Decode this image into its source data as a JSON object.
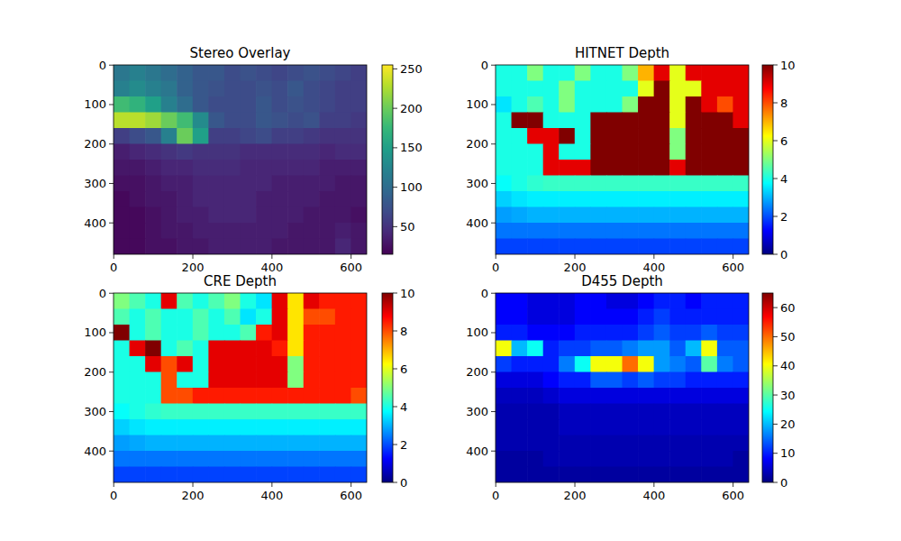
{
  "chart_data": [
    {
      "type": "heatmap",
      "title": "Stereo Overlay",
      "color": "viridis",
      "xlim": [
        -0.5,
        639.5
      ],
      "ylim": [
        479.5,
        -0.5
      ],
      "xticks": [
        0,
        200,
        400,
        600
      ],
      "yticks": [
        0,
        100,
        200,
        300,
        400
      ],
      "cells": [
        [
          110,
          120,
          110,
          100,
          90,
          80,
          80,
          70,
          75,
          70,
          65,
          70,
          75,
          70,
          65,
          60
        ],
        [
          120,
          130,
          120,
          110,
          90,
          80,
          75,
          70,
          70,
          75,
          70,
          80,
          70,
          65,
          60,
          60
        ],
        [
          180,
          170,
          150,
          120,
          100,
          80,
          70,
          70,
          70,
          80,
          70,
          75,
          70,
          65,
          60,
          60
        ],
        [
          230,
          230,
          220,
          200,
          180,
          130,
          80,
          70,
          70,
          80,
          75,
          70,
          75,
          60,
          60,
          55
        ],
        [
          60,
          70,
          80,
          120,
          200,
          150,
          60,
          60,
          65,
          70,
          60,
          60,
          55,
          50,
          50,
          50
        ],
        [
          35,
          40,
          45,
          50,
          55,
          50,
          50,
          50,
          45,
          45,
          45,
          45,
          45,
          40,
          45,
          45
        ],
        [
          30,
          30,
          35,
          40,
          40,
          45,
          45,
          45,
          40,
          40,
          40,
          40,
          40,
          35,
          35,
          35
        ],
        [
          25,
          25,
          30,
          35,
          35,
          40,
          40,
          40,
          40,
          40,
          35,
          35,
          35,
          35,
          30,
          30
        ],
        [
          20,
          25,
          30,
          30,
          35,
          40,
          40,
          40,
          40,
          35,
          35,
          35,
          35,
          30,
          30,
          30
        ],
        [
          20,
          20,
          25,
          30,
          35,
          35,
          40,
          40,
          40,
          35,
          35,
          35,
          30,
          30,
          30,
          25
        ],
        [
          20,
          20,
          25,
          30,
          30,
          35,
          35,
          35,
          35,
          35,
          35,
          30,
          30,
          30,
          35,
          30
        ],
        [
          20,
          20,
          25,
          25,
          30,
          30,
          35,
          35,
          35,
          35,
          30,
          30,
          30,
          30,
          40,
          30
        ]
      ],
      "colorbar": {
        "range": [
          15,
          255
        ],
        "ticks": [
          50,
          100,
          150,
          200,
          250
        ]
      }
    },
    {
      "type": "heatmap",
      "title": "HITNET Depth",
      "color": "jet",
      "xlim": [
        -0.5,
        639.5
      ],
      "ylim": [
        479.5,
        -0.5
      ],
      "xticks": [
        0,
        200,
        400,
        600
      ],
      "yticks": [
        0,
        100,
        200,
        300,
        400
      ],
      "cells": [
        [
          4,
          4,
          5,
          4,
          4,
          5,
          4,
          4,
          5,
          7,
          9,
          6,
          9,
          9,
          9,
          9
        ],
        [
          4,
          4,
          4,
          4,
          5,
          4,
          4,
          4,
          4,
          6,
          10,
          6,
          6,
          9,
          9,
          9
        ],
        [
          3.5,
          4,
          4.5,
          4,
          5,
          4,
          4,
          4,
          5,
          10,
          10,
          6,
          10,
          9,
          8,
          9
        ],
        [
          4,
          10,
          10,
          4,
          4,
          4,
          10,
          10,
          10,
          10,
          10,
          6,
          10,
          10,
          10,
          9
        ],
        [
          4,
          4,
          9,
          9,
          10,
          4,
          10,
          10,
          10,
          10,
          10,
          5,
          10,
          10,
          10,
          10
        ],
        [
          4,
          4,
          4,
          9,
          4,
          4,
          10,
          10,
          10,
          10,
          10,
          5,
          10,
          10,
          10,
          10
        ],
        [
          4,
          4,
          4,
          9,
          9,
          9,
          10,
          10,
          10,
          10,
          10,
          9,
          10,
          10,
          10,
          10
        ],
        [
          3.8,
          4,
          4.2,
          4.3,
          4.3,
          4.3,
          4.3,
          4.3,
          4.3,
          4.3,
          4.3,
          4.3,
          4.3,
          4.3,
          4.3,
          4.3
        ],
        [
          3.3,
          3.5,
          3.6,
          3.6,
          3.6,
          3.6,
          3.6,
          3.6,
          3.6,
          3.6,
          3.6,
          3.6,
          3.6,
          3.6,
          3.6,
          3.6
        ],
        [
          2.8,
          2.9,
          3,
          3,
          3,
          3,
          3,
          3,
          3,
          3,
          3,
          3,
          3,
          3,
          3,
          3
        ],
        [
          2.4,
          2.4,
          2.4,
          2.4,
          2.4,
          2.4,
          2.4,
          2.4,
          2.4,
          2.4,
          2.4,
          2.4,
          2.4,
          2.4,
          2.4,
          2.4
        ],
        [
          1.9,
          1.9,
          1.9,
          1.9,
          1.9,
          1.9,
          1.9,
          1.9,
          1.9,
          1.9,
          1.9,
          1.9,
          1.9,
          1.9,
          1.9,
          1.9
        ]
      ],
      "colorbar": {
        "range": [
          0,
          10
        ],
        "ticks": [
          0,
          2,
          4,
          6,
          8,
          10
        ]
      }
    },
    {
      "type": "heatmap",
      "title": "CRE Depth",
      "color": "jet",
      "xlim": [
        -0.5,
        639.5
      ],
      "ylim": [
        479.5,
        -0.5
      ],
      "xticks": [
        0,
        200,
        400,
        600
      ],
      "yticks": [
        0,
        100,
        200,
        300,
        400
      ],
      "cells": [
        [
          5,
          4.5,
          4,
          9,
          4.5,
          4,
          4.5,
          5,
          4,
          3.5,
          9,
          6.5,
          9,
          8.5,
          8.5,
          8.5
        ],
        [
          4.5,
          4,
          4.5,
          4,
          4,
          4.5,
          4,
          4.5,
          3.5,
          4,
          9,
          6.5,
          8,
          8,
          8.5,
          8.5
        ],
        [
          10,
          4,
          4.5,
          4,
          4,
          4.5,
          4,
          4,
          4.5,
          8.5,
          9,
          6.5,
          8.5,
          8.5,
          8.5,
          8.5
        ],
        [
          4,
          9,
          10,
          4,
          4.5,
          4,
          9,
          9,
          9,
          9,
          8.5,
          6.5,
          8.5,
          8.5,
          8.5,
          8.5
        ],
        [
          4,
          4,
          9,
          8,
          9,
          4,
          9,
          9,
          9,
          9,
          9,
          5,
          8.5,
          8.5,
          8.5,
          8.5
        ],
        [
          4,
          4,
          4,
          8,
          4,
          4,
          9,
          9,
          9,
          9,
          9,
          5,
          8.5,
          8.5,
          8.5,
          8.5
        ],
        [
          4,
          4,
          4,
          8,
          8,
          8.5,
          8.5,
          8.5,
          8.5,
          8.5,
          8.5,
          8.5,
          8.5,
          8.5,
          8.5,
          8
        ],
        [
          3.8,
          4,
          4.2,
          4.3,
          4.3,
          4.3,
          4.3,
          4.3,
          4.3,
          4.3,
          4.3,
          4.3,
          4.3,
          4.3,
          4.3,
          4.3
        ],
        [
          3.3,
          3.5,
          3.6,
          3.6,
          3.6,
          3.6,
          3.6,
          3.6,
          3.6,
          3.6,
          3.6,
          3.6,
          3.6,
          3.6,
          3.6,
          3.6
        ],
        [
          2.8,
          2.9,
          3,
          3,
          3,
          3,
          3,
          3,
          3,
          3,
          3,
          3,
          3,
          3,
          3,
          3
        ],
        [
          2.4,
          2.4,
          2.4,
          2.4,
          2.4,
          2.4,
          2.4,
          2.4,
          2.4,
          2.4,
          2.4,
          2.4,
          2.4,
          2.4,
          2.4,
          2.4
        ],
        [
          1.9,
          1.9,
          1.9,
          1.9,
          1.9,
          1.9,
          1.9,
          1.9,
          1.9,
          1.9,
          1.9,
          1.9,
          1.9,
          1.9,
          1.9,
          1.9
        ]
      ],
      "colorbar": {
        "range": [
          0,
          10
        ],
        "ticks": [
          0,
          2,
          4,
          6,
          8,
          10
        ]
      }
    },
    {
      "type": "heatmap",
      "title": "D455 Depth",
      "color": "jet",
      "xlim": [
        -0.5,
        639.5
      ],
      "ylim": [
        479.5,
        -0.5
      ],
      "xticks": [
        0,
        200,
        400,
        600
      ],
      "yticks": [
        0,
        100,
        200,
        300,
        400
      ],
      "cells": [
        [
          8,
          8,
          6,
          6,
          6,
          8,
          8,
          6,
          6,
          8,
          10,
          10,
          8,
          10,
          10,
          10
        ],
        [
          8,
          8,
          6,
          6,
          6,
          8,
          8,
          8,
          8,
          10,
          12,
          10,
          10,
          10,
          10,
          10
        ],
        [
          10,
          10,
          8,
          8,
          8,
          10,
          10,
          10,
          10,
          12,
          14,
          12,
          12,
          14,
          12,
          12
        ],
        [
          40,
          20,
          25,
          10,
          12,
          12,
          14,
          14,
          16,
          18,
          18,
          14,
          20,
          40,
          14,
          14
        ],
        [
          12,
          10,
          10,
          10,
          16,
          25,
          40,
          40,
          50,
          40,
          18,
          16,
          14,
          30,
          16,
          14
        ],
        [
          6,
          6,
          6,
          8,
          10,
          10,
          14,
          14,
          12,
          14,
          12,
          12,
          10,
          10,
          10,
          10
        ],
        [
          4,
          4,
          4,
          5,
          6,
          6,
          6,
          6,
          6,
          6,
          6,
          6,
          6,
          6,
          6,
          6
        ],
        [
          3,
          3,
          3,
          3,
          4,
          4,
          4,
          4,
          4,
          4,
          4,
          4,
          4,
          4,
          4,
          4
        ],
        [
          3,
          3,
          3,
          3,
          4,
          4,
          4,
          4,
          4,
          4,
          4,
          4,
          4,
          4,
          4,
          4
        ],
        [
          3,
          3,
          3,
          3,
          3,
          3,
          3,
          3,
          3,
          3,
          3,
          3,
          3,
          3,
          3,
          3
        ],
        [
          2,
          2,
          2,
          3,
          3,
          3,
          3,
          3,
          3,
          3,
          3,
          3,
          3,
          3,
          3,
          2
        ],
        [
          2,
          2,
          2,
          2,
          2,
          2,
          2,
          2,
          2,
          2,
          2,
          2,
          2,
          2,
          2,
          2
        ]
      ],
      "colorbar": {
        "range": [
          0,
          65
        ],
        "ticks": [
          0,
          10,
          20,
          30,
          40,
          50,
          60
        ]
      }
    }
  ]
}
